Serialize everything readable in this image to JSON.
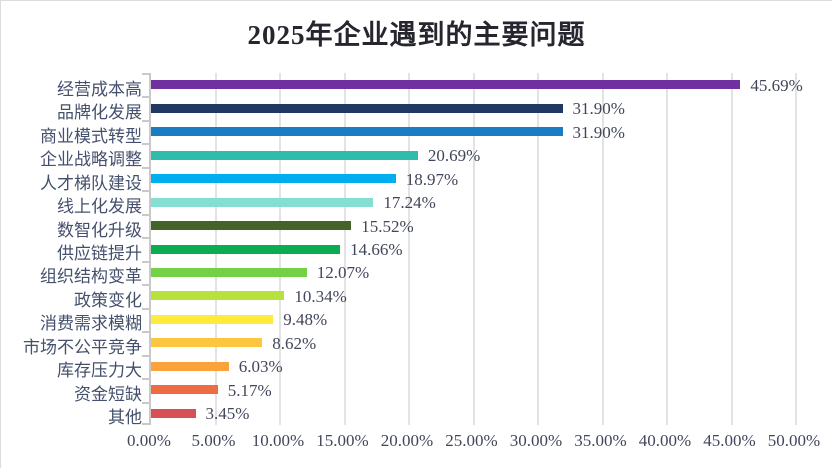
{
  "chart_data": {
    "type": "bar",
    "orientation": "horizontal",
    "title": "2025年企业遇到的主要问题",
    "categories": [
      "经营成本高",
      "品牌化发展",
      "商业模式转型",
      "企业战略调整",
      "人才梯队建设",
      "线上化发展",
      "数智化升级",
      "供应链提升",
      "组织结构变革",
      "政策变化",
      "消费需求模糊",
      "市场不公平竞争",
      "库存压力大",
      "资金短缺",
      "其他"
    ],
    "values": [
      45.69,
      31.9,
      31.9,
      20.69,
      18.97,
      17.24,
      15.52,
      14.66,
      12.07,
      10.34,
      9.48,
      8.62,
      6.03,
      5.17,
      3.45
    ],
    "value_labels": [
      "45.69%",
      "31.90%",
      "31.90%",
      "20.69%",
      "18.97%",
      "17.24%",
      "15.52%",
      "14.66%",
      "12.07%",
      "10.34%",
      "9.48%",
      "8.62%",
      "6.03%",
      "5.17%",
      "3.45%"
    ],
    "bar_colors": [
      "#7030A0",
      "#1F3864",
      "#1A7DC4",
      "#2FBCAC",
      "#00AEEF",
      "#84DFD2",
      "#446329",
      "#0BAC51",
      "#74D145",
      "#B7E23E",
      "#FFEB3D",
      "#FDC63F",
      "#FAA33C",
      "#ED6C44",
      "#D85055"
    ],
    "xlim": [
      0,
      50
    ],
    "x_tick_step": 5,
    "x_tick_labels": [
      "0.00%",
      "5.00%",
      "10.00%",
      "15.00%",
      "20.00%",
      "25.00%",
      "30.00%",
      "35.00%",
      "40.00%",
      "45.00%",
      "50.00%"
    ],
    "grid": true,
    "gridline_color": "#e3e3e3",
    "axis_color": "#c9c9c9",
    "label_color": "#44506c",
    "value_color": "#41465a",
    "title_color": "#26262e",
    "background": "#ffffff",
    "legend": "none"
  }
}
